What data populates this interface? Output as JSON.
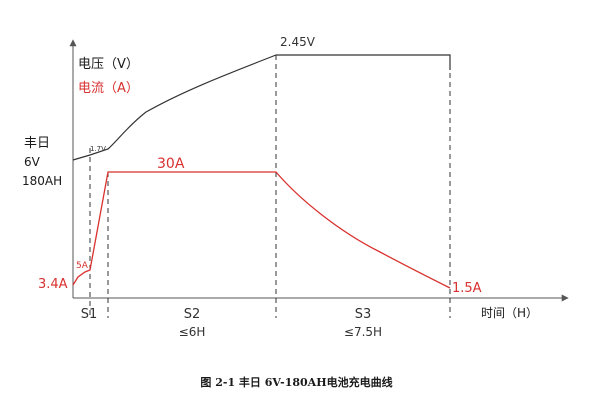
{
  "chart_data": {
    "type": "line",
    "title": "图 2-1 丰日 6V-180AH电池充电曲线",
    "ylabel": "",
    "xlabel": "时间（H）",
    "battery_brand": "丰日",
    "battery_voltage": "6V",
    "battery_capacity": "180AH",
    "legend": {
      "voltage": "电压（V）",
      "current": "电流（A）"
    },
    "stages": [
      {
        "name": "S1",
        "duration": ""
      },
      {
        "name": "S2",
        "duration": "≤6H"
      },
      {
        "name": "S3",
        "duration": "≤7.5H"
      }
    ],
    "series": [
      {
        "name": "电压（V）",
        "color": "#333333",
        "points": [
          "start",
          "1.7V at end of S1",
          "2.45V at end of S2",
          "2.45V held through S3"
        ],
        "labels": [
          "1.7V",
          "2.45V"
        ]
      },
      {
        "name": "电流（A）",
        "color": "#d8312f",
        "points": [
          "3.4A at start",
          "5A",
          "30A through S2",
          "1.5A at end of S3"
        ],
        "labels": [
          "3.4A",
          "5A",
          "30A",
          "1.5A"
        ]
      }
    ],
    "annotations": {
      "voltage_start": "1.7V",
      "voltage_peak": "2.45V",
      "current_start": "3.4A",
      "current_step": "5A",
      "current_constant": "30A",
      "current_end": "1.5A"
    }
  },
  "colors": {
    "axis": "#555555",
    "voltage": "#333333",
    "current": "#d8312f"
  }
}
